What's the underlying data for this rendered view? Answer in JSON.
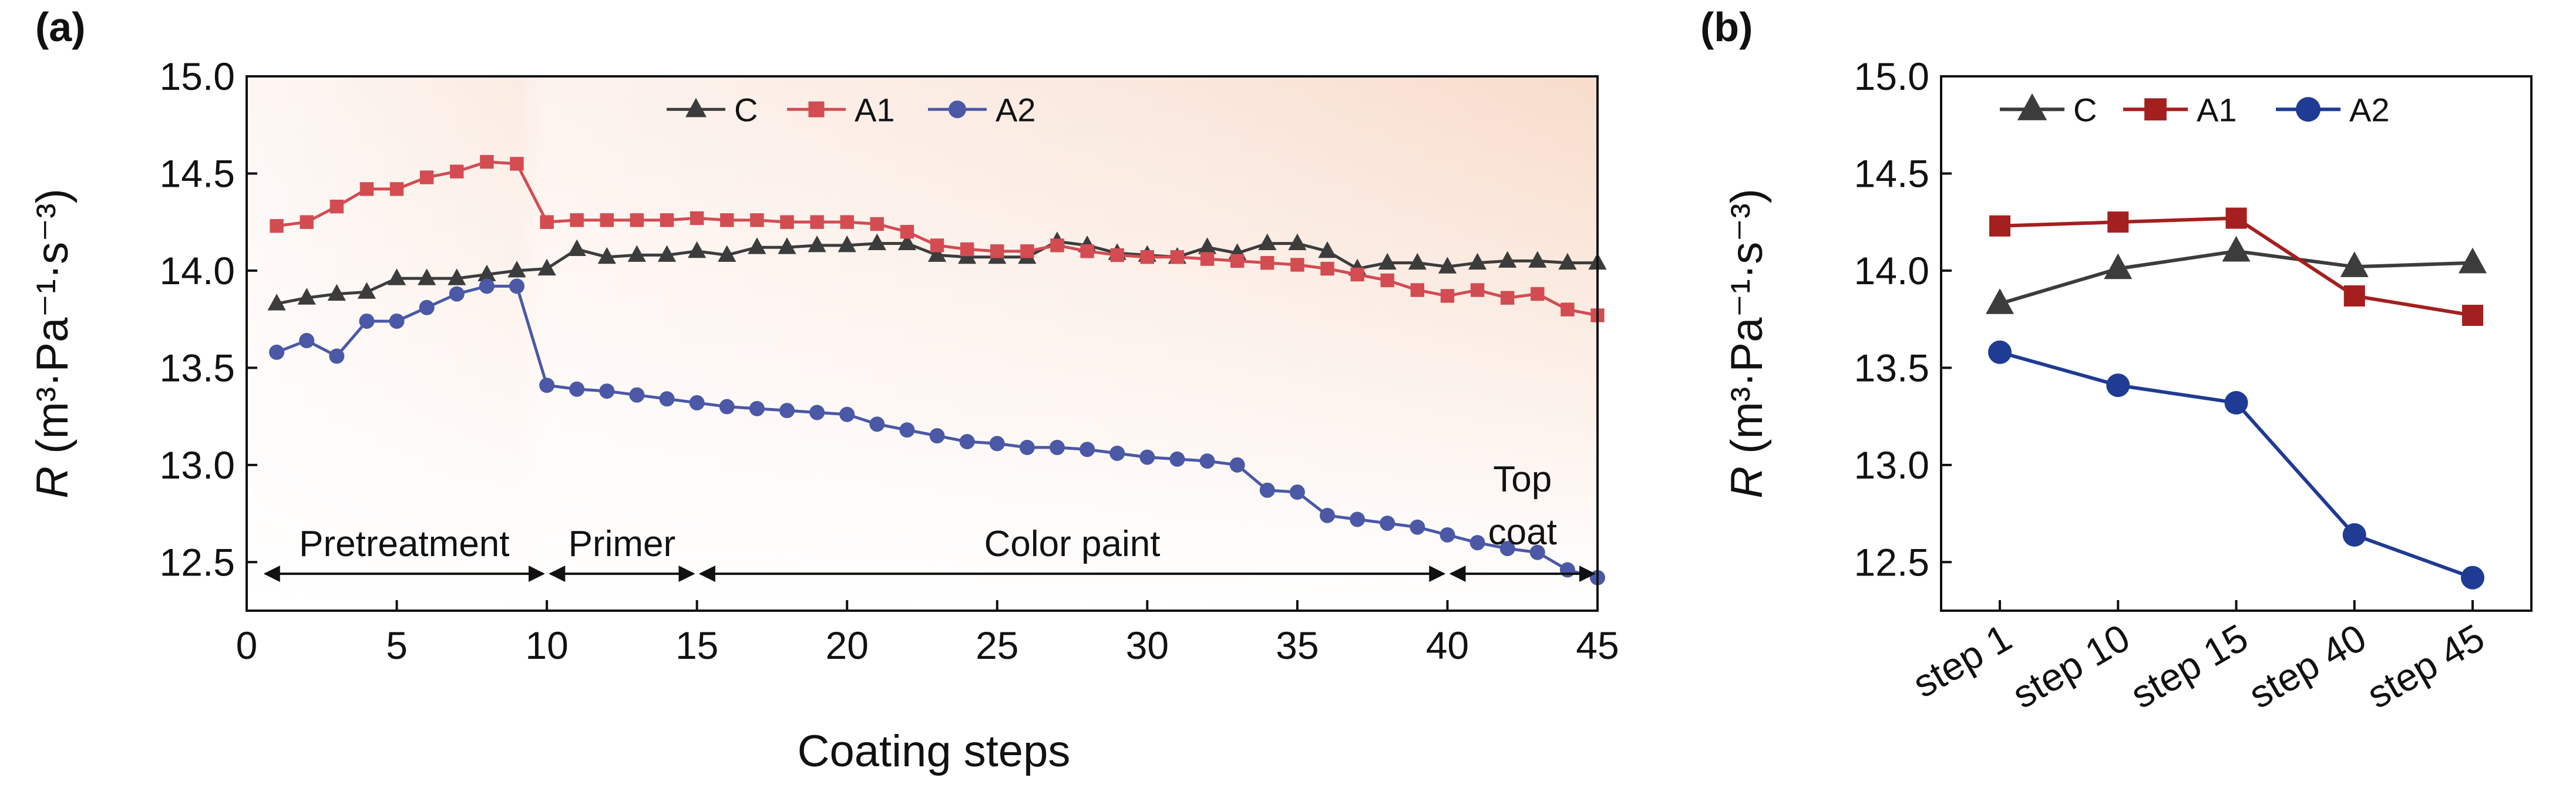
{
  "panels": {
    "a": {
      "label": "(a)"
    },
    "b": {
      "label": "(b)"
    }
  },
  "colors": {
    "C": "#3c3c3c",
    "A1": "#d24c52",
    "A2": "#4a58a6",
    "A1_b": "#a3201f",
    "A2_b": "#1f3b93"
  },
  "chart_data": [
    {
      "type": "line",
      "panel": "(a)",
      "title": "",
      "xlabel": "Coating steps",
      "ylabel_var": "R",
      "ylabel_units": "(m³·Pa⁻¹·s⁻³)",
      "xlim": [
        0,
        45
      ],
      "ylim": [
        12.25,
        15.0
      ],
      "xticks": [
        "0",
        "5",
        "10",
        "15",
        "20",
        "25",
        "30",
        "35",
        "40",
        "45"
      ],
      "yticks": [
        "12.5",
        "13.0",
        "13.5",
        "14.0",
        "14.5",
        "15.0"
      ],
      "x": [
        1,
        2,
        3,
        4,
        5,
        6,
        7,
        8,
        9,
        10,
        11,
        12,
        13,
        14,
        15,
        16,
        17,
        18,
        19,
        20,
        21,
        22,
        23,
        24,
        25,
        26,
        27,
        28,
        29,
        30,
        31,
        32,
        33,
        34,
        35,
        36,
        37,
        38,
        39,
        40,
        41,
        42,
        43,
        44,
        45
      ],
      "legend": [
        "C",
        "A1",
        "A2"
      ],
      "legend_position": "top-center",
      "series": [
        {
          "name": "C",
          "marker": "triangle",
          "values": [
            13.83,
            13.86,
            13.88,
            13.89,
            13.96,
            13.96,
            13.96,
            13.98,
            14.0,
            14.01,
            14.11,
            14.07,
            14.08,
            14.08,
            14.1,
            14.08,
            14.12,
            14.12,
            14.13,
            14.13,
            14.14,
            14.14,
            14.08,
            14.07,
            14.07,
            14.07,
            14.15,
            14.13,
            14.09,
            14.08,
            14.07,
            14.12,
            14.09,
            14.14,
            14.14,
            14.1,
            14.01,
            14.04,
            14.04,
            14.02,
            14.04,
            14.05,
            14.05,
            14.04,
            14.04
          ]
        },
        {
          "name": "A1",
          "marker": "square",
          "values": [
            14.23,
            14.25,
            14.33,
            14.42,
            14.42,
            14.48,
            14.51,
            14.56,
            14.55,
            14.25,
            14.26,
            14.26,
            14.26,
            14.26,
            14.27,
            14.26,
            14.26,
            14.25,
            14.25,
            14.25,
            14.24,
            14.2,
            14.13,
            14.11,
            14.1,
            14.1,
            14.13,
            14.1,
            14.08,
            14.07,
            14.07,
            14.06,
            14.05,
            14.04,
            14.03,
            14.01,
            13.98,
            13.95,
            13.9,
            13.87,
            13.9,
            13.86,
            13.88,
            13.8,
            13.77
          ]
        },
        {
          "name": "A2",
          "marker": "circle",
          "values": [
            13.58,
            13.64,
            13.56,
            13.74,
            13.74,
            13.81,
            13.88,
            13.92,
            13.92,
            13.41,
            13.39,
            13.38,
            13.36,
            13.34,
            13.32,
            13.3,
            13.29,
            13.28,
            13.27,
            13.26,
            13.21,
            13.18,
            13.15,
            13.12,
            13.11,
            13.09,
            13.09,
            13.08,
            13.06,
            13.04,
            13.03,
            13.02,
            13.0,
            12.87,
            12.86,
            12.74,
            12.72,
            12.7,
            12.68,
            12.64,
            12.6,
            12.57,
            12.55,
            12.46,
            12.42
          ]
        }
      ],
      "annotations": [
        {
          "text": "Pretreatment",
          "from": 0.5,
          "to": 10
        },
        {
          "text": "Primer",
          "from": 10,
          "to": 15
        },
        {
          "text": "Color paint",
          "from": 15,
          "to": 40
        },
        {
          "text_lines": [
            "Top",
            "coat"
          ],
          "from": 40,
          "to": 45
        }
      ]
    },
    {
      "type": "line",
      "panel": "(b)",
      "title": "",
      "xlabel": "",
      "ylabel_var": "R",
      "ylabel_units": "(m³·Pa⁻¹·s⁻³)",
      "ylim": [
        12.25,
        15.0
      ],
      "yticks": [
        "12.5",
        "13.0",
        "13.5",
        "14.0",
        "14.5",
        "15.0"
      ],
      "categories": [
        "step 1",
        "step 10",
        "step 15",
        "step 40",
        "step 45"
      ],
      "legend": [
        "C",
        "A1",
        "A2"
      ],
      "legend_position": "top-center",
      "series": [
        {
          "name": "C",
          "marker": "triangle",
          "values": [
            13.83,
            14.01,
            14.1,
            14.02,
            14.04
          ]
        },
        {
          "name": "A1",
          "marker": "square",
          "values": [
            14.23,
            14.25,
            14.27,
            13.87,
            13.77
          ]
        },
        {
          "name": "A2",
          "marker": "circle",
          "values": [
            13.58,
            13.41,
            13.32,
            12.64,
            12.42
          ]
        }
      ]
    }
  ]
}
